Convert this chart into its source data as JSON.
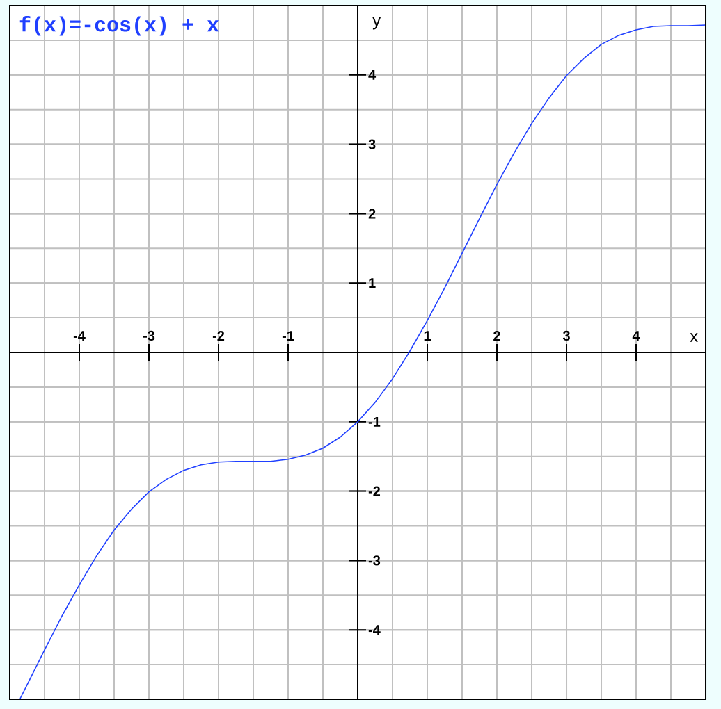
{
  "chart_data": {
    "type": "line",
    "title": "f(x)=-cos(x) + x",
    "xlabel": "x",
    "ylabel": "y",
    "x": [
      -4.85,
      -4.75,
      -4.5,
      -4.25,
      -4,
      -3.75,
      -3.5,
      -3.25,
      -3,
      -2.75,
      -2.5,
      -2.25,
      -2,
      -1.75,
      -1.5,
      -1.25,
      -1,
      -0.75,
      -0.5,
      -0.25,
      0,
      0.25,
      0.5,
      0.75,
      1,
      1.25,
      1.5,
      1.75,
      2,
      2.25,
      2.5,
      2.75,
      3,
      3.25,
      3.5,
      3.75,
      4,
      4.25,
      4.5,
      4.75,
      5
    ],
    "series": [
      {
        "color": "#2040ff",
        "values": [
          -4.99,
          -4.79,
          -4.29,
          -3.8,
          -3.35,
          -2.93,
          -2.56,
          -2.26,
          -2.01,
          -1.83,
          -1.7,
          -1.62,
          -1.58,
          -1.57,
          -1.57,
          -1.57,
          -1.54,
          -1.48,
          -1.38,
          -1.22,
          -1,
          -0.72,
          -0.38,
          0.02,
          0.46,
          0.93,
          1.43,
          1.93,
          2.42,
          2.88,
          3.3,
          3.67,
          3.99,
          4.24,
          4.44,
          4.57,
          4.65,
          4.7,
          4.71,
          4.71,
          4.72
        ]
      }
    ],
    "xlim": [
      -5,
      5
    ],
    "ylim": [
      -5,
      5
    ],
    "xticks": [
      -4,
      -3,
      -2,
      -1,
      1,
      2,
      3,
      4
    ],
    "yticks": [
      -4,
      -3,
      -2,
      -1,
      1,
      2,
      3,
      4
    ],
    "grid": true
  }
}
